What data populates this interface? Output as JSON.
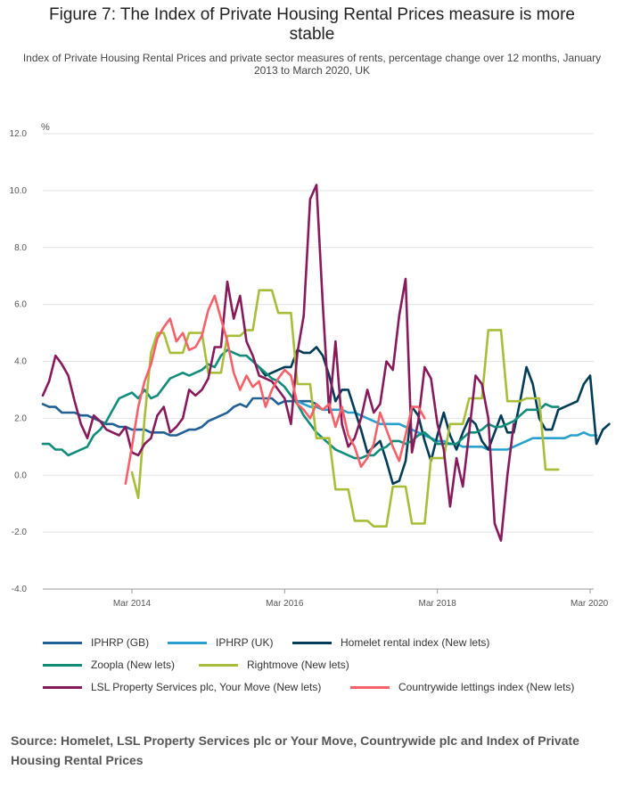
{
  "chart_data": {
    "type": "line",
    "title": "Figure 7: The Index of Private Housing Rental Prices measure is more stable",
    "subtitle": "Index of Private Housing Rental Prices and private sector measures of rents, percentage change over 12 months, January 2013 to March 2020, UK",
    "ylabel": "%",
    "ylim": [
      -4,
      12
    ],
    "yticks": [
      "-4.0",
      "-2.0",
      "0.0",
      "2.0",
      "4.0",
      "6.0",
      "8.0",
      "10.0",
      "12.0"
    ],
    "x_range_months": [
      0,
      86
    ],
    "xticks": [
      {
        "label": "Mar 2014",
        "month": 14
      },
      {
        "label": "Mar 2016",
        "month": 38
      },
      {
        "label": "Mar 2018",
        "month": 62
      },
      {
        "label": "Mar 2020",
        "month": 86
      }
    ],
    "series": [
      {
        "name": "IPHRP (GB)",
        "color": "#206095",
        "start": 0,
        "values": [
          2.5,
          2.4,
          2.4,
          2.2,
          2.2,
          2.2,
          2.1,
          2.1,
          2.0,
          1.9,
          1.8,
          1.8,
          1.7,
          1.7,
          1.6,
          1.6,
          1.6,
          1.5,
          1.5,
          1.5,
          1.4,
          1.4,
          1.5,
          1.6,
          1.6,
          1.7,
          1.9,
          2.0,
          2.1,
          2.2,
          2.4,
          2.5,
          2.4,
          2.7,
          2.7,
          2.7,
          2.7,
          2.5,
          2.6,
          2.6,
          2.6,
          2.6,
          2.6,
          2.5
        ]
      },
      {
        "name": "IPHRP (UK)",
        "color": "#27a0cc",
        "start": 40,
        "values": [
          2.6,
          2.5,
          2.4,
          2.4,
          2.3,
          2.3,
          2.3,
          2.3,
          2.2,
          2.2,
          2.1,
          2.0,
          1.9,
          1.8,
          1.8,
          1.8,
          1.8,
          1.7,
          1.6,
          1.5,
          1.4,
          1.3,
          1.2,
          1.2,
          1.1,
          1.1,
          1.0,
          1.0,
          1.0,
          1.0,
          0.9,
          0.9,
          0.9,
          0.9,
          1.0,
          1.1,
          1.2,
          1.3,
          1.3,
          1.3,
          1.3,
          1.3,
          1.3,
          1.4,
          1.4,
          1.5,
          1.4,
          1.4
        ]
      },
      {
        "name": "Homelet rental index (New lets)",
        "color": "#003c57",
        "start": 34,
        "values": [
          3.8,
          3.5,
          3.6,
          3.7,
          3.8,
          3.8,
          4.4,
          4.3,
          4.3,
          4.5,
          4.2,
          3.5,
          2.6,
          3.0,
          3.0,
          2.3,
          1.6,
          0.8,
          1.0,
          1.2,
          0.5,
          -0.3,
          -0.2,
          0.5,
          2.4,
          2.1,
          1.2,
          0.5,
          1.4,
          2.2,
          1.4,
          0.9,
          1.5,
          2.0,
          1.8,
          1.2,
          0.9,
          1.5,
          2.1,
          1.5,
          1.5,
          2.6,
          3.8,
          3.2,
          2.0,
          1.6,
          1.6,
          2.3,
          2.4,
          2.5,
          2.6,
          3.2,
          3.5,
          1.1,
          1.6,
          1.8
        ]
      },
      {
        "name": "Zoopla (New lets)",
        "color": "#118c7b",
        "start": 0,
        "values": [
          1.1,
          1.1,
          0.9,
          0.9,
          0.7,
          0.8,
          0.9,
          1.0,
          1.4,
          1.6,
          1.9,
          2.3,
          2.7,
          2.8,
          2.9,
          2.7,
          3.0,
          2.7,
          2.8,
          3.1,
          3.4,
          3.5,
          3.6,
          3.5,
          3.6,
          3.7,
          3.9,
          3.8,
          4.2,
          4.4,
          4.3,
          4.2,
          4.2,
          4.0,
          3.8,
          3.6,
          3.4,
          3.3,
          3.1,
          2.8,
          2.5,
          2.1,
          1.8,
          1.5,
          1.3,
          1.1,
          0.9,
          0.8,
          0.7,
          0.6,
          0.6,
          0.7,
          0.7,
          0.9,
          1.0,
          1.2,
          1.2,
          1.1,
          1.2,
          1.4,
          1.5,
          1.3,
          1.1,
          1.1,
          1.1,
          1.1,
          1.3,
          1.5,
          1.5,
          1.6,
          1.8,
          1.7,
          1.7,
          1.8,
          1.9,
          2.1,
          2.3,
          2.3,
          2.3,
          2.5,
          2.4,
          2.4
        ]
      },
      {
        "name": "Rightmove (New lets)",
        "color": "#a8bd3a",
        "start": 14,
        "values": [
          0.1,
          -0.8,
          2.0,
          4.3,
          5.0,
          5.0,
          4.3,
          4.3,
          4.3,
          5.0,
          5.0,
          5.0,
          3.6,
          3.6,
          3.6,
          4.9,
          4.9,
          4.9,
          5.1,
          5.1,
          6.5,
          6.5,
          6.5,
          5.7,
          5.7,
          5.7,
          3.2,
          3.2,
          3.2,
          1.3,
          1.3,
          1.3,
          -0.5,
          -0.5,
          -0.5,
          -1.6,
          -1.6,
          -1.6,
          -1.8,
          -1.8,
          -1.8,
          -0.4,
          -0.4,
          -0.4,
          -1.7,
          -1.7,
          -1.7,
          0.6,
          0.6,
          0.6,
          1.8,
          1.8,
          1.8,
          2.7,
          2.7,
          2.7,
          5.1,
          5.1,
          5.1,
          2.6,
          2.6,
          2.6,
          2.7,
          2.7,
          2.7,
          0.2,
          0.2,
          0.2
        ]
      },
      {
        "name": "LSL Property Services plc, Your Move (New lets)",
        "color": "#871a5b",
        "start": 0,
        "values": [
          2.8,
          3.3,
          4.2,
          3.9,
          3.5,
          2.6,
          1.8,
          1.3,
          2.1,
          1.9,
          1.6,
          1.5,
          1.4,
          1.7,
          0.8,
          0.7,
          1.1,
          1.3,
          2.1,
          2.4,
          1.5,
          1.7,
          2.0,
          3.0,
          2.8,
          3.0,
          3.4,
          4.5,
          4.5,
          6.8,
          5.5,
          6.3,
          4.7,
          4.2,
          3.5,
          3.4,
          3.3,
          3.0,
          2.7,
          1.8,
          4.3,
          5.6,
          9.7,
          10.2,
          6.0,
          2.2,
          4.7,
          1.8,
          1.0,
          1.3,
          2.0,
          3.0,
          2.2,
          2.5,
          4.0,
          3.7,
          5.6,
          6.9,
          0.8,
          1.9,
          3.8,
          3.4,
          1.8,
          0.9,
          -1.1,
          0.6,
          -0.4,
          1.5,
          3.5,
          3.2,
          2.0,
          -1.7,
          -2.3,
          0.0,
          1.8
        ]
      },
      {
        "name": "Countrywide lettings index (New lets)",
        "color": "#f66068",
        "start": 13,
        "values": [
          -0.3,
          1.0,
          2.4,
          3.3,
          3.9,
          4.8,
          5.2,
          5.5,
          4.7,
          5.0,
          4.4,
          4.5,
          4.9,
          5.8,
          6.3,
          5.5,
          4.7,
          3.6,
          3.0,
          3.5,
          3.1,
          3.3,
          2.4,
          3.0,
          3.4,
          3.7,
          3.5,
          2.5,
          2.3,
          2.0,
          2.5,
          2.3,
          2.5,
          1.7,
          2.4,
          1.4,
          1.0,
          0.3,
          0.6,
          1.1,
          2.2,
          1.6,
          1.0,
          0.5,
          1.4,
          2.4,
          2.4,
          2.0
        ]
      }
    ]
  },
  "legend": [
    {
      "label": "IPHRP (GB)",
      "color": "#206095"
    },
    {
      "label": "IPHRP (UK)",
      "color": "#27a0cc"
    },
    {
      "label": "Homelet rental index (New lets)",
      "color": "#003c57"
    },
    {
      "label": "Zoopla (New lets)",
      "color": "#118c7b"
    },
    {
      "label": "Rightmove (New lets)",
      "color": "#a8bd3a"
    },
    {
      "label": "LSL Property Services plc, Your Move (New lets)",
      "color": "#871a5b"
    },
    {
      "label": "Countrywide lettings index (New lets)",
      "color": "#f66068"
    }
  ],
  "source": "Source: Homelet, LSL Property Services plc or Your Move, Countrywide plc and Index of Private Housing Rental Prices"
}
